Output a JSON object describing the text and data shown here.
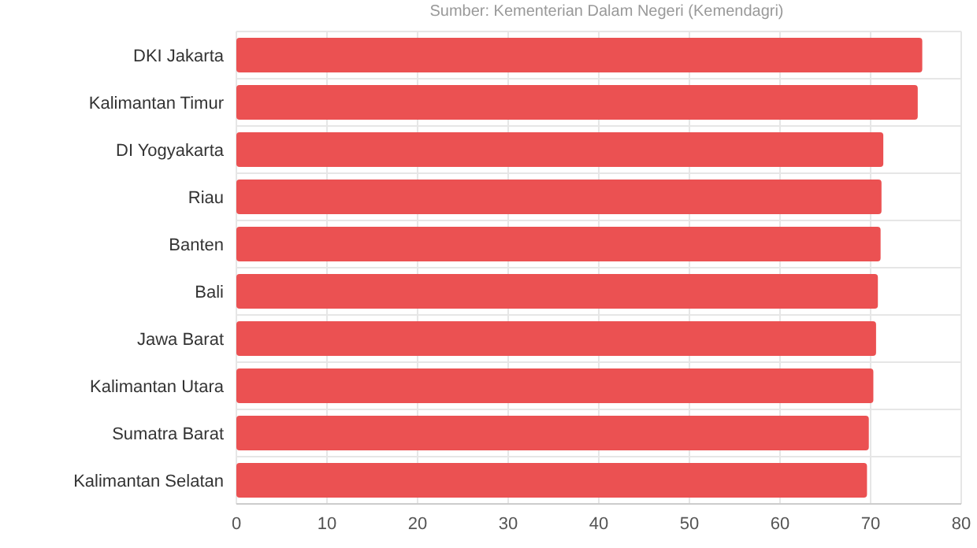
{
  "chart_data": {
    "type": "bar",
    "orientation": "horizontal",
    "annotations": [
      "Sumber: Kementerian Dalam Negeri (Kemendagri)"
    ],
    "categories": [
      "DKI Jakarta",
      "Kalimantan Timur",
      "DI Yogyakarta",
      "Riau",
      "Banten",
      "Bali",
      "Jawa Barat",
      "Kalimantan Utara",
      "Sumatra Barat",
      "Kalimantan Selatan"
    ],
    "values": [
      75.7,
      75.2,
      71.4,
      71.2,
      71.1,
      70.8,
      70.6,
      70.3,
      69.8,
      69.6
    ],
    "color": "#eb5152",
    "xlim": [
      0,
      80
    ],
    "xticks": [
      0,
      10,
      20,
      30,
      40,
      50,
      60,
      70,
      80
    ],
    "grid": true
  }
}
